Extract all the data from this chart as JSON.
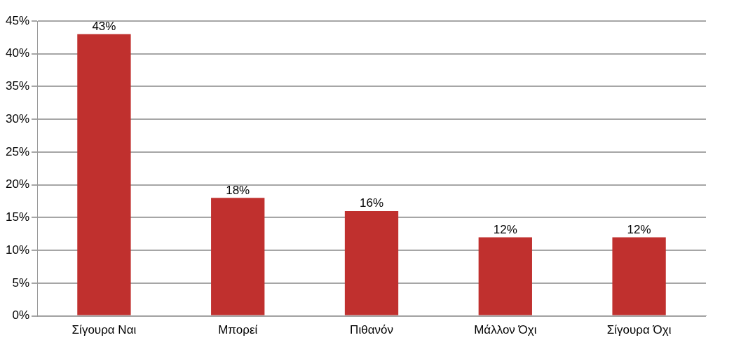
{
  "chart_data": {
    "type": "bar",
    "categories": [
      "Σίγουρα Ναι",
      "Μπορεί",
      "Πιθανόν",
      "Μάλλον Όχι",
      "Σίγουρα Όχι"
    ],
    "values": [
      43,
      18,
      16,
      12,
      12
    ],
    "value_labels": [
      "43%",
      "18%",
      "16%",
      "12%",
      "12%"
    ],
    "color": "#c0302e",
    "ylim": [
      0,
      45
    ],
    "yticks": [
      {
        "value": 0,
        "label": "0%"
      },
      {
        "value": 5,
        "label": "5%"
      },
      {
        "value": 10,
        "label": "10%"
      },
      {
        "value": 15,
        "label": "15%"
      },
      {
        "value": 20,
        "label": "20%"
      },
      {
        "value": 25,
        "label": "25%"
      },
      {
        "value": 30,
        "label": "30%"
      },
      {
        "value": 35,
        "label": "35%"
      },
      {
        "value": 40,
        "label": "40%"
      },
      {
        "value": 45,
        "label": "45%"
      }
    ],
    "grid": "y"
  }
}
